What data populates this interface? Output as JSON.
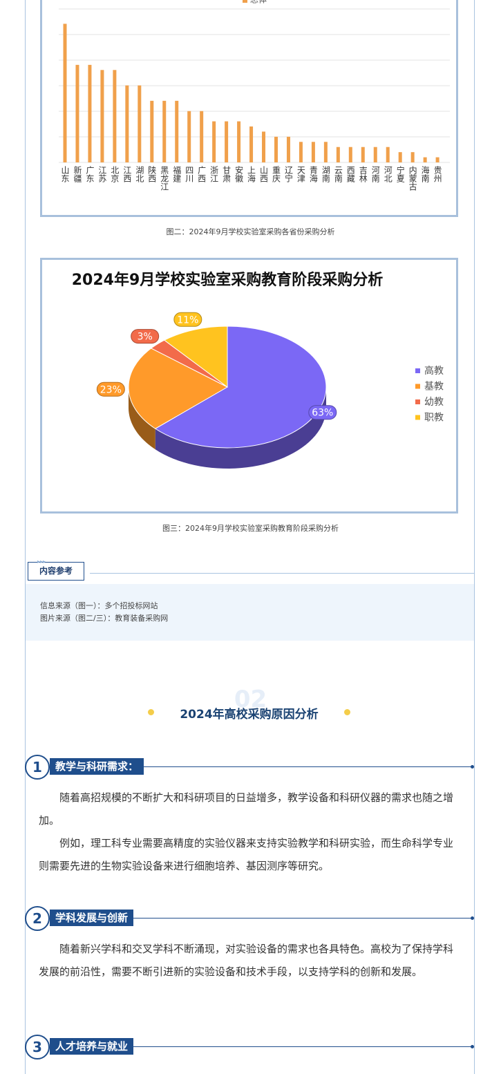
{
  "chart_data": [
    {
      "type": "bar",
      "categories": [
        "山东",
        "新疆",
        "广东",
        "江苏",
        "北京",
        "江西",
        "湖北",
        "陕西",
        "黑龙江",
        "福建",
        "四川",
        "广西",
        "浙江",
        "甘肃",
        "安徽",
        "上海",
        "山西",
        "重庆",
        "辽宁",
        "天津",
        "青海",
        "湖南",
        "云南",
        "西藏",
        "吉林",
        "河南",
        "河北",
        "宁夏",
        "内蒙古",
        "海南",
        "贵州"
      ],
      "series": [
        {
          "name": "总体",
          "color": "#f0a04b",
          "values": [
            5.4,
            3.8,
            3.8,
            3.6,
            3.6,
            3.0,
            3.0,
            2.4,
            2.4,
            2.4,
            2.0,
            2.0,
            1.6,
            1.6,
            1.6,
            1.4,
            1.2,
            1.0,
            1.0,
            0.8,
            0.8,
            0.8,
            0.6,
            0.6,
            0.6,
            0.6,
            0.6,
            0.4,
            0.4,
            0.2,
            0.2
          ]
        }
      ],
      "ylim": [
        0,
        6.3
      ],
      "grid": true,
      "caption": "图二：2024年9月学校实验室采购各省份采购分析"
    },
    {
      "type": "pie",
      "title": "2024年9月学校实验室采购教育阶段采购分析",
      "categories": [
        "高教",
        "基教",
        "幼教",
        "职教"
      ],
      "values": [
        63,
        23,
        3,
        11
      ],
      "value_labels": [
        "63%",
        "23%",
        "3%",
        "11%"
      ],
      "colors": [
        "#7b68f5",
        "#ff9a2a",
        "#f26b4a",
        "#ffc31f"
      ],
      "legend": "right",
      "caption": "图三：2024年9月学校实验室采购教育阶段采购分析"
    }
  ],
  "reference": {
    "heading": "内容参考",
    "lines": [
      "信息来源（图一）：多个招投标网站",
      "图片来源（图二/三）：教育装备采购网"
    ]
  },
  "section": {
    "number": "02",
    "title": "2024年高校采购原因分析"
  },
  "items": [
    {
      "number": "1",
      "title": "教学与科研需求：",
      "paragraphs": [
        "随着高招规模的不断扩大和科研项目的日益增多，教学设备和科研仪器的需求也随之增加。",
        "例如，理工科专业需要高精度的实验仪器来支持实验教学和科研实验，而生命科学专业则需要先进的生物实验设备来进行细胞培养、基因测序等研究。"
      ]
    },
    {
      "number": "2",
      "title": "学科发展与创新",
      "paragraphs": [
        "随着新兴学科和交叉学科不断涌现，对实验设备的需求也各具特色。高校为了保持学科发展的前沿性，需要不断引进新的实验设备和技术手段，以支持学科的创新和发展。"
      ]
    },
    {
      "number": "3",
      "title": "人才培养与就业",
      "paragraphs": []
    }
  ]
}
